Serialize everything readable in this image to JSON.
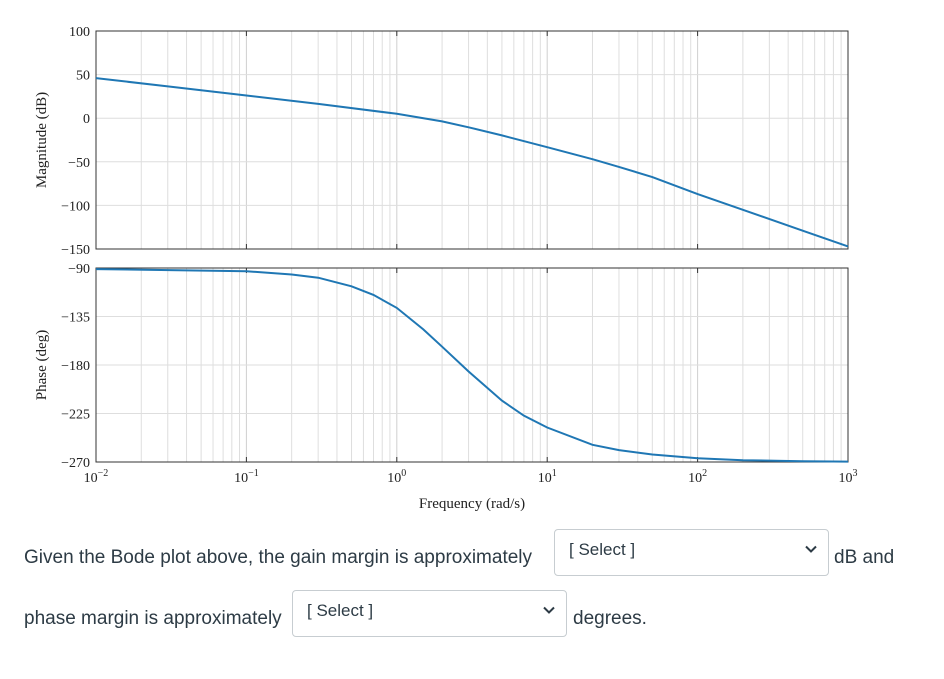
{
  "chart_data": [
    {
      "type": "line",
      "panel": "magnitude",
      "ylabel": "Magnitude (dB)",
      "xscale": "log",
      "xlim": [
        0.01,
        1000
      ],
      "ylim": [
        -150,
        100
      ],
      "yticks": [
        "100",
        "50",
        "0",
        "−50",
        "−100",
        "−150"
      ],
      "grid": true,
      "series": [
        {
          "color": "#1f77b4",
          "x": [
            0.01,
            0.03,
            0.1,
            0.3,
            1,
            2,
            3,
            5,
            10,
            20,
            30,
            50,
            100,
            200,
            500,
            1000
          ],
          "y": [
            46,
            36.5,
            26,
            16.4,
            5,
            -3.7,
            -10.4,
            -19.7,
            -33.2,
            -47,
            -55.8,
            -67.5,
            -87,
            -105,
            -129,
            -147
          ]
        }
      ]
    },
    {
      "type": "line",
      "panel": "phase",
      "ylabel": "Phase (deg)",
      "xlabel": "Frequency (rad/s)",
      "xscale": "log",
      "xlim": [
        0.01,
        1000
      ],
      "ylim": [
        -270,
        -90
      ],
      "yticks": [
        "−90",
        "−135",
        "−180",
        "−225",
        "−270"
      ],
      "xticks": [
        "10−2",
        "10−1",
        "10⁰",
        "10¹",
        "10²",
        "10³"
      ],
      "grid": true,
      "series": [
        {
          "color": "#1f77b4",
          "x": [
            0.01,
            0.1,
            0.2,
            0.3,
            0.5,
            0.7,
            1,
            1.5,
            2,
            3,
            5,
            7,
            10,
            20,
            30,
            50,
            100,
            200,
            500,
            1000
          ],
          "y": [
            -91,
            -93,
            -96,
            -99,
            -107,
            -115,
            -127,
            -147,
            -163,
            -186,
            -213,
            -227,
            -238,
            -254,
            -259,
            -263,
            -266.5,
            -268.3,
            -269.3,
            -269.6
          ]
        }
      ]
    }
  ],
  "question": {
    "part1": "Given the Bode plot above, the gain margin is approximately",
    "unit1": "dB and",
    "part2": "phase margin is approximately",
    "unit2": "degrees.",
    "select1_value": "[ Select ]",
    "select2_value": "[ Select ]"
  }
}
